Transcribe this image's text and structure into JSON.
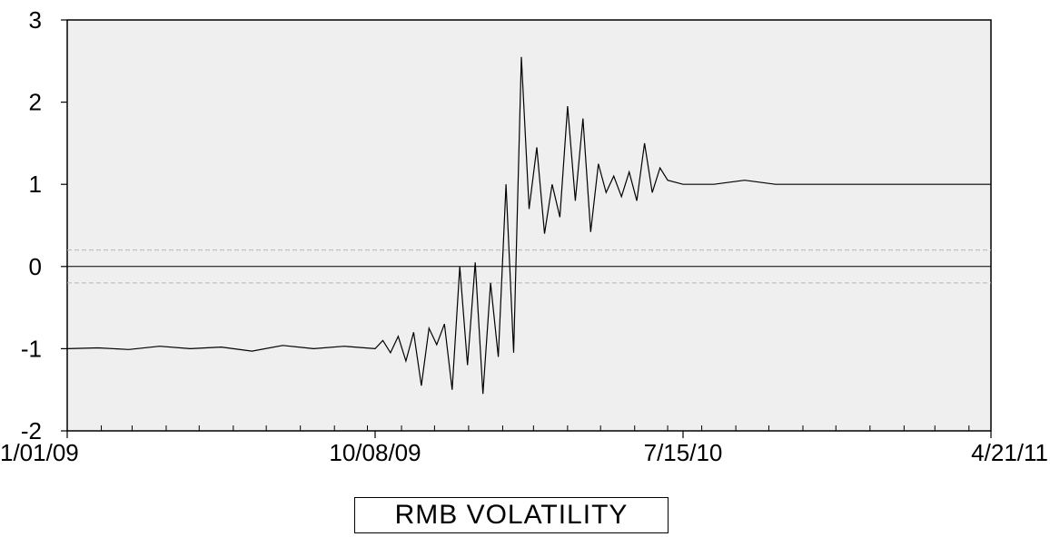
{
  "chart_data": {
    "type": "line",
    "title": "",
    "xlabel": "",
    "ylabel": "",
    "x_start": "1/01/09",
    "x_end": "4/21/11",
    "x_ticks": [
      "1/01/09",
      "10/08/09",
      "7/15/10",
      "4/21/11"
    ],
    "ylim": [
      -2,
      3
    ],
    "y_ticks": [
      "-2",
      "-1",
      "0",
      "1",
      "2",
      "3"
    ],
    "reference_lines": [
      0.2,
      0,
      -0.2
    ],
    "legend": {
      "placement": "bottom-center"
    },
    "series": [
      {
        "name": "RMB VOLATILITY",
        "x": [
          "1/01/09",
          "1/29/09",
          "2/26/09",
          "3/26/09",
          "4/23/09",
          "5/21/09",
          "6/18/09",
          "7/16/09",
          "8/13/09",
          "9/10/09",
          "10/08/09",
          "10/15/09",
          "10/22/09",
          "10/29/09",
          "11/05/09",
          "11/12/09",
          "11/19/09",
          "11/26/09",
          "12/03/09",
          "12/10/09",
          "12/17/09",
          "12/24/09",
          "12/31/09",
          "1/07/10",
          "1/14/10",
          "1/21/10",
          "1/28/10",
          "2/04/10",
          "2/11/10",
          "2/18/10",
          "2/25/10",
          "3/04/10",
          "3/11/10",
          "3/18/10",
          "3/25/10",
          "4/01/10",
          "4/08/10",
          "4/15/10",
          "4/22/10",
          "4/29/10",
          "5/06/10",
          "5/13/10",
          "5/20/10",
          "5/27/10",
          "6/03/10",
          "6/10/10",
          "6/17/10",
          "6/24/10",
          "7/01/10",
          "7/15/10",
          "8/12/10",
          "9/09/10",
          "10/07/10",
          "11/04/10",
          "12/02/10",
          "12/30/10",
          "1/27/11",
          "2/24/11",
          "3/24/11",
          "4/21/11"
        ],
        "values": [
          -1.0,
          -0.99,
          -1.01,
          -0.97,
          -1.0,
          -0.98,
          -1.03,
          -0.96,
          -1.0,
          -0.97,
          -1.0,
          -0.9,
          -1.05,
          -0.85,
          -1.15,
          -0.8,
          -1.45,
          -0.75,
          -0.95,
          -0.7,
          -1.5,
          0.0,
          -1.2,
          0.05,
          -1.55,
          -0.2,
          -1.1,
          1.0,
          -1.05,
          2.55,
          0.7,
          1.45,
          0.4,
          1.0,
          0.6,
          1.95,
          0.8,
          1.8,
          0.42,
          1.25,
          0.9,
          1.1,
          0.85,
          1.15,
          0.8,
          1.5,
          0.9,
          1.2,
          1.05,
          1.0,
          1.0,
          1.05,
          1.0,
          1.0,
          1.0,
          1.0,
          1.0,
          1.0,
          1.0,
          1.0
        ]
      }
    ]
  }
}
